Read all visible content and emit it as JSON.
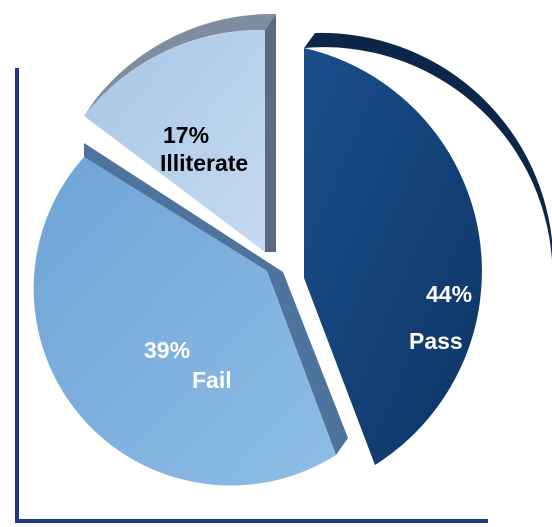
{
  "chart_data": {
    "type": "pie",
    "title": "",
    "categories": [
      "Pass",
      "Fail",
      "Illiterate"
    ],
    "values": [
      44,
      39,
      17
    ],
    "value_labels": [
      "44%",
      "39%",
      "17%"
    ],
    "colors": [
      "#123f73",
      "#78acd9",
      "#b6d0ea"
    ],
    "label_colors": [
      "#ffffff",
      "#ffffff",
      "#000000"
    ],
    "exploded": true,
    "style": "3d",
    "legend": "none"
  },
  "frame_color": "#1d3a8c"
}
